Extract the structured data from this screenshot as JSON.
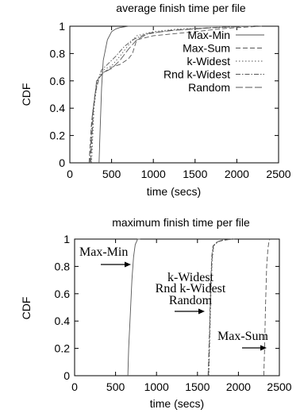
{
  "chart_data": [
    {
      "type": "line",
      "title": "average finish time per file",
      "xlabel": "time (secs)",
      "ylabel": "CDF",
      "xlim": [
        0,
        2500
      ],
      "ylim": [
        0,
        1
      ],
      "xticks": [
        "0",
        "500",
        "1000",
        "1500",
        "2000",
        "2500"
      ],
      "yticks": [
        "0",
        "0.2",
        "0.4",
        "0.6",
        "0.8",
        "1"
      ],
      "grid": false,
      "legend_position": "top-right",
      "series": [
        {
          "name": "Max-Min",
          "dash": "solid",
          "x": [
            350,
            360,
            380,
            400,
            450,
            500,
            550,
            600,
            700,
            900,
            1200,
            2200
          ],
          "y": [
            0,
            0.2,
            0.55,
            0.75,
            0.9,
            0.96,
            0.98,
            0.99,
            1,
            1,
            1,
            1
          ]
        },
        {
          "name": "Max-Sum",
          "dash": "dash",
          "x": [
            230,
            260,
            300,
            350,
            400,
            500,
            600,
            700,
            750,
            800,
            1000,
            1500,
            1800,
            2000,
            2300
          ],
          "y": [
            0,
            0.3,
            0.5,
            0.62,
            0.66,
            0.7,
            0.72,
            0.76,
            0.8,
            0.9,
            0.93,
            0.96,
            0.98,
            0.99,
            1
          ]
        },
        {
          "name": "k-Widest",
          "dash": "dot",
          "x": [
            260,
            290,
            330,
            400,
            500,
            600,
            700,
            800,
            1000,
            1300,
            1800,
            2100
          ],
          "y": [
            0,
            0.4,
            0.6,
            0.68,
            0.71,
            0.78,
            0.86,
            0.93,
            0.96,
            0.98,
            0.99,
            1
          ]
        },
        {
          "name": "Rnd k-Widest",
          "dash": "dashdot",
          "x": [
            240,
            270,
            320,
            380,
            450,
            550,
            650,
            750,
            900,
            1200,
            1700,
            2050
          ],
          "y": [
            0,
            0.35,
            0.58,
            0.68,
            0.72,
            0.78,
            0.85,
            0.9,
            0.94,
            0.97,
            0.99,
            1
          ]
        },
        {
          "name": "Random",
          "dash": "longdash",
          "x": [
            250,
            280,
            320,
            400,
            500,
            600,
            700,
            800,
            950,
            1250,
            1750,
            2150
          ],
          "y": [
            0,
            0.38,
            0.6,
            0.66,
            0.69,
            0.75,
            0.83,
            0.9,
            0.95,
            0.97,
            0.99,
            1
          ]
        }
      ]
    },
    {
      "type": "line",
      "title": "maximum finish time per file",
      "xlabel": "time (secs)",
      "ylabel": "CDF",
      "xlim": [
        0,
        2500
      ],
      "ylim": [
        0,
        1
      ],
      "xticks": [
        "0",
        "500",
        "1000",
        "1500",
        "2000",
        "2500"
      ],
      "yticks": [
        "0",
        "0.2",
        "0.4",
        "0.6",
        "0.8",
        "1"
      ],
      "grid": false,
      "annotations": [
        "Max-Min",
        "k-Widest",
        "Rnd k-Widest",
        "Random",
        "Max-Sum"
      ],
      "series": [
        {
          "label_group": "Max-Min",
          "dash": "solid",
          "x": [
            650,
            660,
            680,
            700,
            720,
            740,
            770,
            800
          ],
          "y": [
            0,
            0.2,
            0.45,
            0.7,
            0.87,
            0.96,
            1,
            1
          ]
        },
        {
          "label_group": "k-Widest",
          "dash": "dot",
          "x": [
            1640,
            1650,
            1665,
            1680,
            1700,
            1750,
            1800,
            1900
          ],
          "y": [
            0,
            0.25,
            0.6,
            0.85,
            0.95,
            0.98,
            0.99,
            1
          ]
        },
        {
          "label_group": "Rnd k-Widest",
          "dash": "dashdot",
          "x": [
            1630,
            1645,
            1660,
            1675,
            1690,
            1740,
            1820,
            1950
          ],
          "y": [
            0,
            0.3,
            0.65,
            0.88,
            0.95,
            0.98,
            0.995,
            1
          ]
        },
        {
          "label_group": "Random",
          "dash": "longdash",
          "x": [
            1635,
            1648,
            1662,
            1678,
            1695,
            1745,
            1810,
            1920
          ],
          "y": [
            0,
            0.28,
            0.62,
            0.86,
            0.95,
            0.98,
            0.99,
            1
          ]
        },
        {
          "label_group": "Max-Sum",
          "dash": "dash",
          "x": [
            2310,
            2320,
            2330,
            2345,
            2360,
            2375,
            2390
          ],
          "y": [
            0,
            0.2,
            0.5,
            0.8,
            0.93,
            0.99,
            1
          ]
        }
      ]
    }
  ]
}
